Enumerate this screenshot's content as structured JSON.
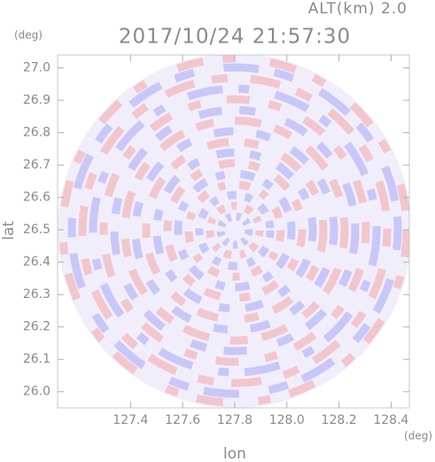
{
  "chart_data": {
    "type": "image",
    "title": "2017/10/24 21:57:30",
    "subtitle": "ALT(km) 2.0",
    "x_label": "lon",
    "y_label": "lat",
    "x_unit": "(deg)",
    "y_unit": "(deg)",
    "xlim": [
      127.12,
      128.47
    ],
    "ylim": [
      25.95,
      27.04
    ],
    "xticks": [
      {
        "value": 127.4,
        "label": "127.4"
      },
      {
        "value": 127.6,
        "label": "127.6"
      },
      {
        "value": 127.8,
        "label": "127.8"
      },
      {
        "value": 128.0,
        "label": "128.0"
      },
      {
        "value": 128.2,
        "label": "128.2"
      },
      {
        "value": 128.4,
        "label": "128.4"
      }
    ],
    "yticks": [
      {
        "value": 26.0,
        "label": "26.0"
      },
      {
        "value": 26.1,
        "label": "26.1"
      },
      {
        "value": 26.2,
        "label": "26.2"
      },
      {
        "value": 26.3,
        "label": "26.3"
      },
      {
        "value": 26.4,
        "label": "26.4"
      },
      {
        "value": 26.5,
        "label": "26.5"
      },
      {
        "value": 26.6,
        "label": "26.6"
      },
      {
        "value": 26.7,
        "label": "26.7"
      },
      {
        "value": 26.8,
        "label": "26.8"
      },
      {
        "value": 26.9,
        "label": "26.9"
      },
      {
        "value": 27.0,
        "label": "27.0"
      }
    ]
  }
}
